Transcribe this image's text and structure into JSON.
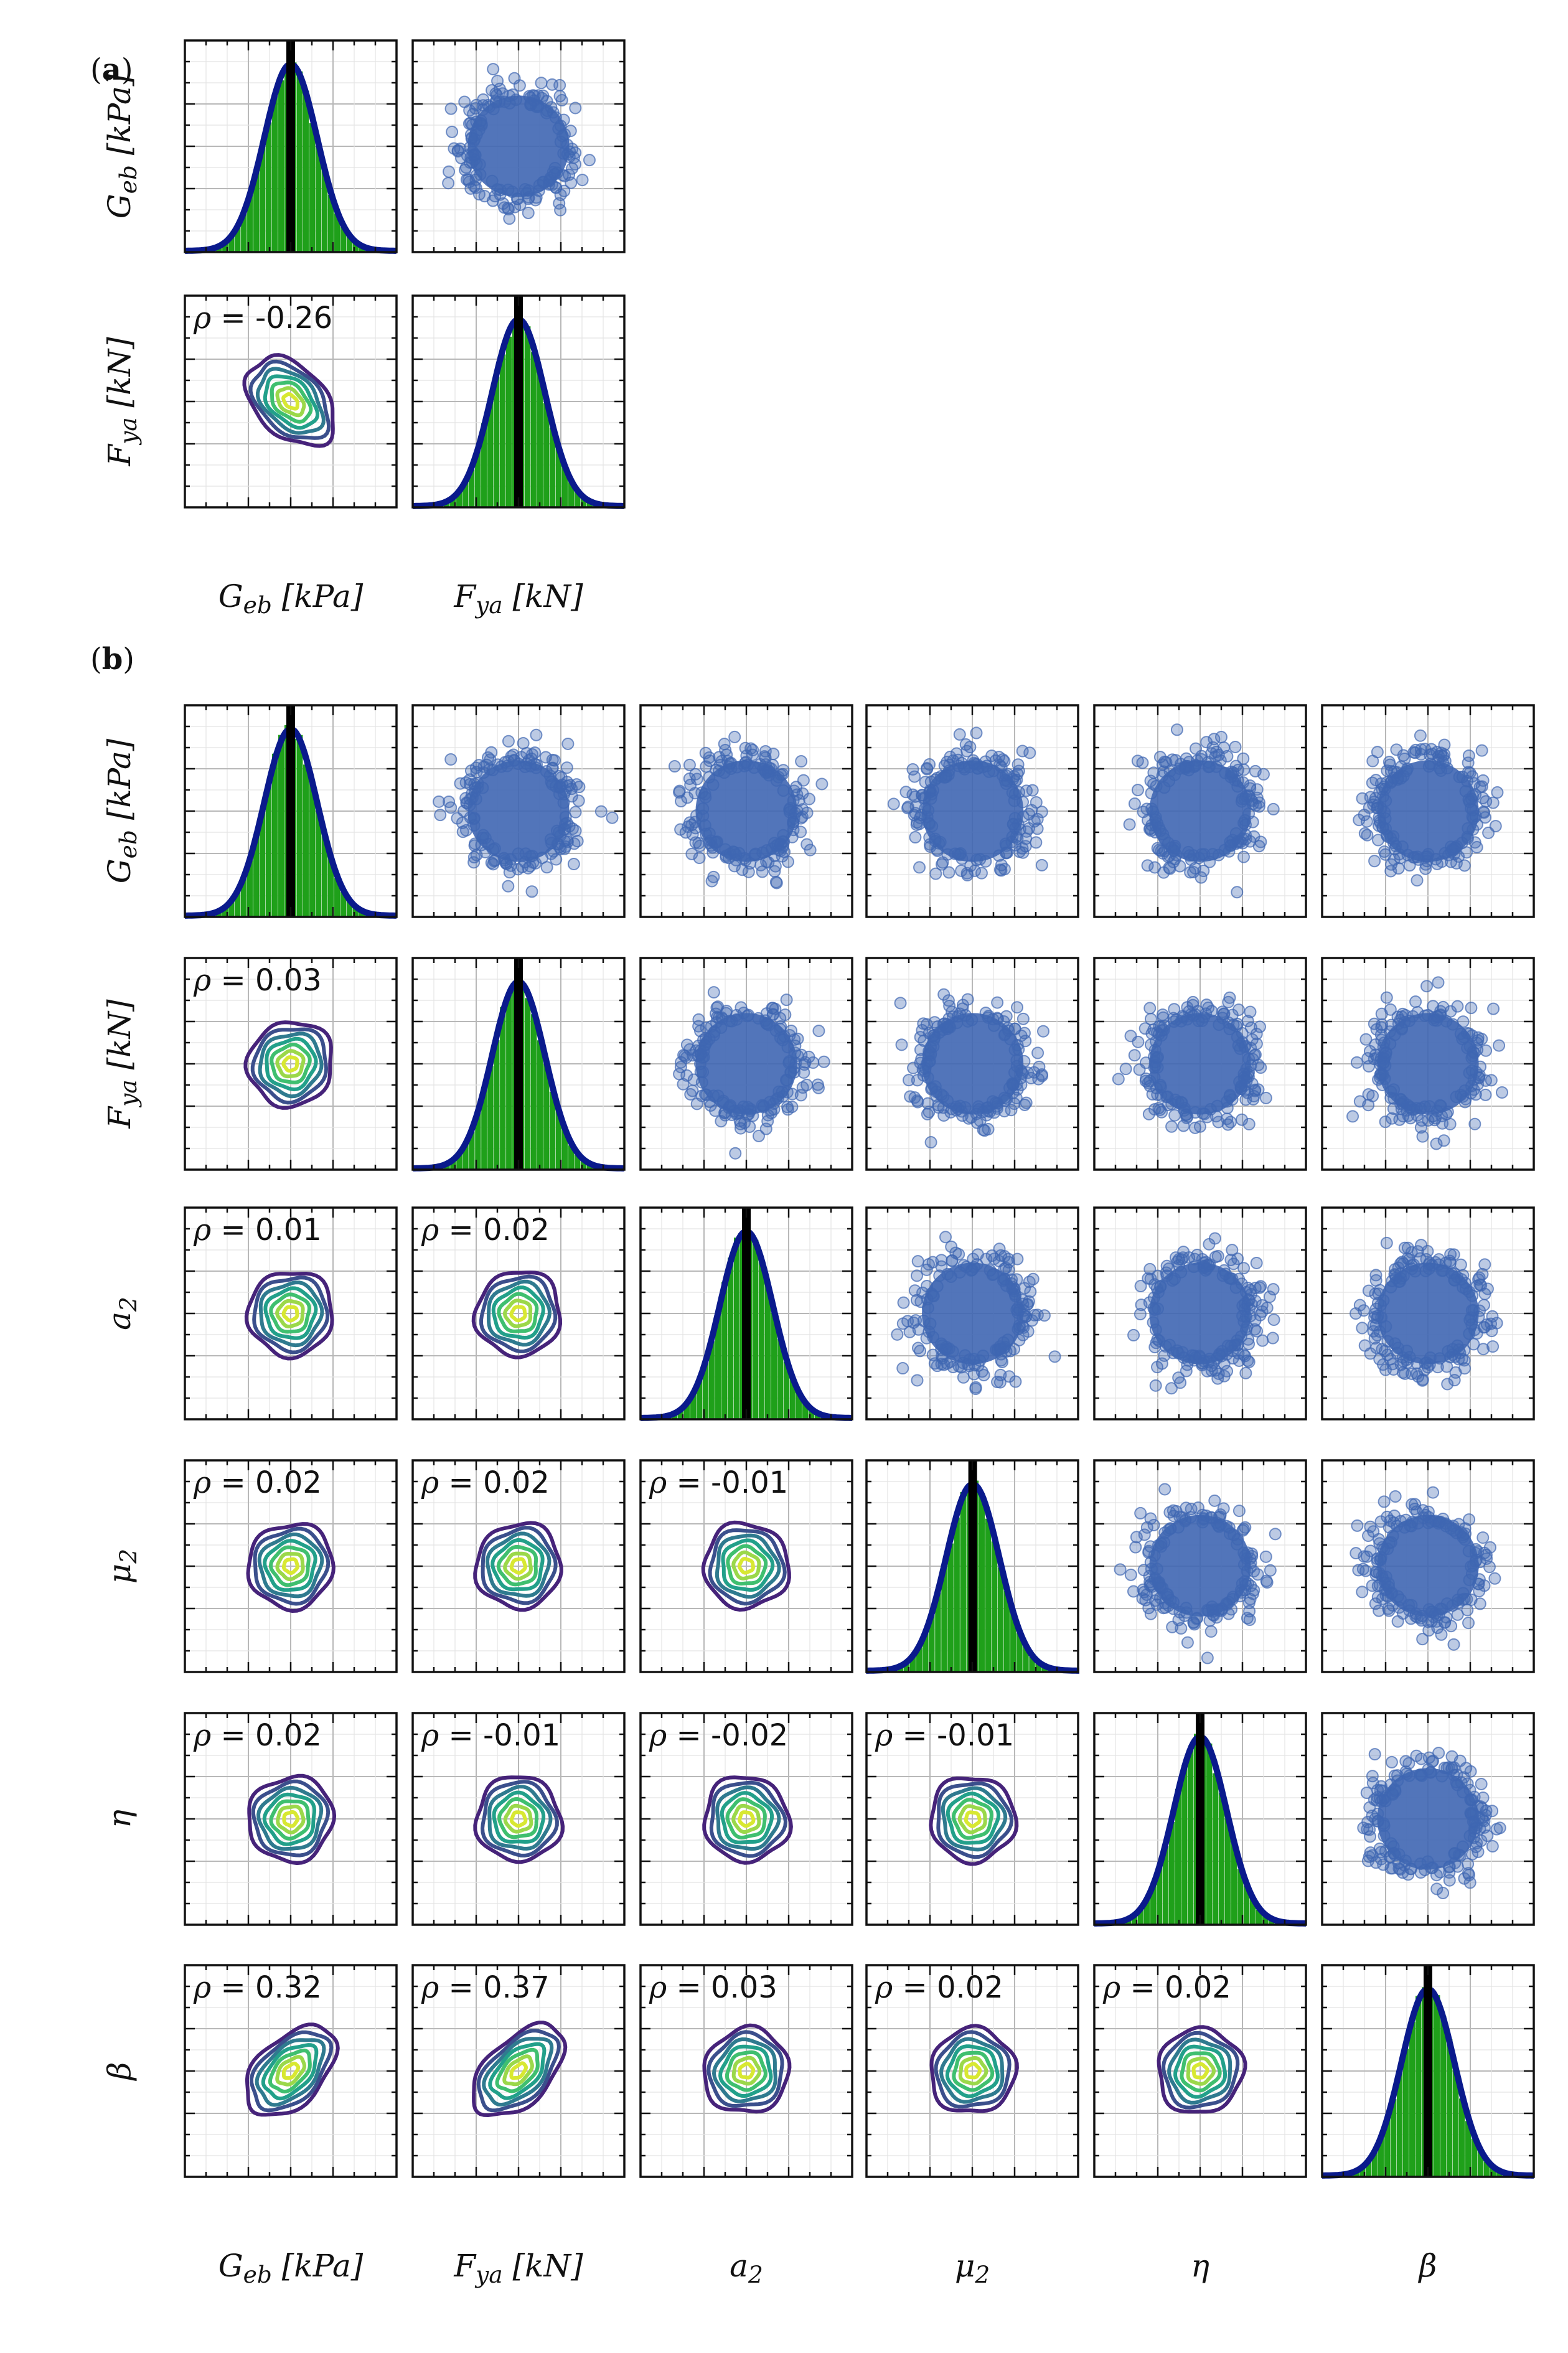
{
  "colors": {
    "hist": "#1fa01a",
    "kde": "#0a1a8c",
    "mean_line": "#000000",
    "scatter": "#3f66b2",
    "contours": [
      "#46237a",
      "#3b4f8c",
      "#2f7a8f",
      "#22a08a",
      "#3fbf6f",
      "#9bd84a",
      "#d8e832"
    ]
  },
  "chart_data": [
    {
      "type": "pairplot",
      "panel_label": "(a)",
      "label_prefix": "(",
      "label_letter": "a",
      "label_suffix": ")",
      "variables": [
        {
          "sym": "G",
          "sub": "eb",
          "unit": "[kPa]",
          "ticks": [
            "948.1",
            "1032.79",
            "1117.48"
          ],
          "mean": 1032.79,
          "sd": 42.3
        },
        {
          "sym": "F",
          "sub": "ya",
          "unit": "[kN]",
          "ticks": [
            "82.95",
            "107.96",
            "132.97"
          ],
          "mean": 107.96,
          "sd": 12.5
        }
      ],
      "correlations": [
        {
          "row": 1,
          "col": 0,
          "text": "= -0.26",
          "rho": -0.26
        }
      ]
    },
    {
      "type": "pairplot",
      "panel_label": "(b)",
      "label_prefix": "(",
      "label_letter": "b",
      "label_suffix": ")",
      "variables": [
        {
          "sym": "G",
          "sub": "eb",
          "unit": "[kPa]",
          "ticks": [
            "1384.3",
            "1490.5",
            "1596.7"
          ],
          "mean": 1490.5,
          "sd": 53.1
        },
        {
          "sym": "F",
          "sub": "ya",
          "unit": "[kN]",
          "ticks": [
            "86.26",
            "98.49",
            "110.71"
          ],
          "mean": 98.49,
          "sd": 6.1
        },
        {
          "sym": "a",
          "sub": "2",
          "unit": "",
          "ticks": [
            "0.41",
            "0.5",
            "0.59"
          ],
          "mean": 0.5,
          "sd": 0.045
        },
        {
          "sym": "μ",
          "sub": "2",
          "unit": "",
          "ticks": [
            "3.32",
            "4.0",
            "4.67"
          ],
          "mean": 4.0,
          "sd": 0.34
        },
        {
          "sym": "η",
          "sub": "",
          "unit": "",
          "ticks": [
            "0.81",
            "0.9",
            "0.99"
          ],
          "mean": 0.9,
          "sd": 0.045
        },
        {
          "sym": "β",
          "sub": "",
          "unit": "",
          "ticks": [
            "0.78",
            "1.05",
            "1.32"
          ],
          "mean": 1.05,
          "sd": 0.135
        }
      ],
      "correlations": [
        {
          "row": 1,
          "col": 0,
          "text": "= 0.03",
          "rho": 0.03
        },
        {
          "row": 2,
          "col": 0,
          "text": "= 0.01",
          "rho": 0.01
        },
        {
          "row": 2,
          "col": 1,
          "text": "= 0.02",
          "rho": 0.02
        },
        {
          "row": 3,
          "col": 0,
          "text": "= 0.02",
          "rho": 0.02
        },
        {
          "row": 3,
          "col": 1,
          "text": "= 0.02",
          "rho": 0.02
        },
        {
          "row": 3,
          "col": 2,
          "text": "= -0.01",
          "rho": -0.01
        },
        {
          "row": 4,
          "col": 0,
          "text": "= 0.02",
          "rho": 0.02
        },
        {
          "row": 4,
          "col": 1,
          "text": "= -0.01",
          "rho": -0.01
        },
        {
          "row": 4,
          "col": 2,
          "text": "= -0.02",
          "rho": -0.02
        },
        {
          "row": 4,
          "col": 3,
          "text": "= -0.01",
          "rho": -0.01
        },
        {
          "row": 5,
          "col": 0,
          "text": "= 0.32",
          "rho": 0.32
        },
        {
          "row": 5,
          "col": 1,
          "text": "= 0.37",
          "rho": 0.37
        },
        {
          "row": 5,
          "col": 2,
          "text": "= 0.03",
          "rho": 0.03
        },
        {
          "row": 5,
          "col": 3,
          "text": "= 0.02",
          "rho": 0.02
        },
        {
          "row": 5,
          "col": 4,
          "text": "= 0.02",
          "rho": 0.02
        }
      ]
    }
  ]
}
